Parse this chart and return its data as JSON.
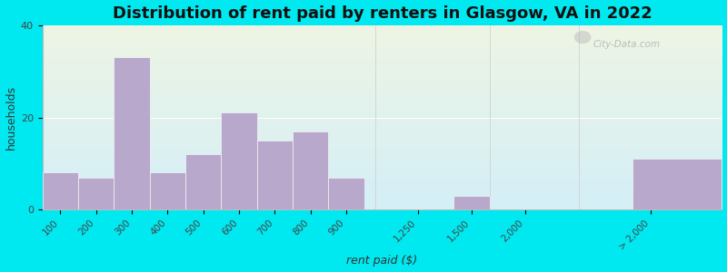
{
  "title": "Distribution of rent paid by renters in Glasgow, VA in 2022",
  "xlabel": "rent paid ($)",
  "ylabel": "households",
  "bar_labels": [
    "100",
    "200",
    "300",
    "400",
    "500",
    "600",
    "700",
    "800",
    "900",
    "1,250",
    "1,500",
    "2,000",
    "> 2,000"
  ],
  "bar_values": [
    8,
    7,
    33,
    8,
    12,
    21,
    15,
    17,
    7,
    0,
    3,
    0,
    11
  ],
  "bar_color": "#b8a8cc",
  "bar_positions": [
    0,
    1,
    2,
    3,
    4,
    5,
    6,
    7,
    8,
    10,
    11.5,
    13.5,
    16.5
  ],
  "bar_widths": [
    1,
    1,
    1,
    1,
    1,
    1,
    1,
    1,
    1,
    1,
    1,
    1,
    3
  ],
  "tick_positions": [
    0.5,
    1.5,
    2.5,
    3.5,
    4.5,
    5.5,
    6.5,
    7.5,
    8.5,
    10.5,
    12,
    13.5,
    17.0
  ],
  "ylim": [
    0,
    40
  ],
  "xlim": [
    0,
    19
  ],
  "background_outer": "#00e8f0",
  "bg_top_color": "#eef5e4",
  "bg_bottom_color": "#d4eff7",
  "title_fontsize": 13,
  "axis_label_fontsize": 9,
  "tick_fontsize": 7.5,
  "watermark": "City-Data.com"
}
